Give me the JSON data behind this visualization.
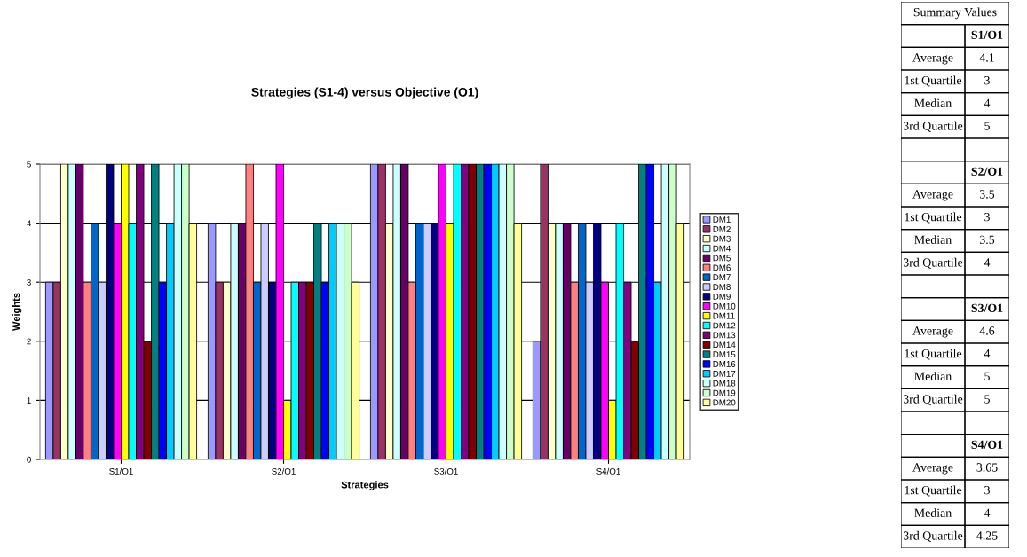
{
  "chart_data": [
    {
      "type": "bar",
      "title": "Strategies (S1-4) versus Objective (O1)",
      "xlabel": "Strategies",
      "ylabel": "Weights",
      "categories": [
        "S1/O1",
        "S2/O1",
        "S3/O1",
        "S4/O1"
      ],
      "series": [
        {
          "name": "DM1",
          "color": "#9999ff",
          "values": [
            3,
            4,
            5,
            2
          ]
        },
        {
          "name": "DM2",
          "color": "#993366",
          "values": [
            3,
            3,
            5,
            5
          ]
        },
        {
          "name": "DM3",
          "color": "#ffffcc",
          "values": [
            5,
            3,
            4,
            4
          ]
        },
        {
          "name": "DM4",
          "color": "#ccffff",
          "values": [
            5,
            4,
            5,
            4
          ]
        },
        {
          "name": "DM5",
          "color": "#660066",
          "values": [
            5,
            4,
            5,
            4
          ]
        },
        {
          "name": "DM6",
          "color": "#ff8080",
          "values": [
            3,
            5,
            3,
            3
          ]
        },
        {
          "name": "DM7",
          "color": "#0066cc",
          "values": [
            4,
            3,
            4,
            4
          ]
        },
        {
          "name": "DM8",
          "color": "#ccccff",
          "values": [
            3,
            4,
            4,
            3
          ]
        },
        {
          "name": "DM9",
          "color": "#000080",
          "values": [
            5,
            3,
            4,
            4
          ]
        },
        {
          "name": "DM10",
          "color": "#ff00ff",
          "values": [
            4,
            5,
            5,
            3
          ]
        },
        {
          "name": "DM11",
          "color": "#ffff00",
          "values": [
            5,
            1,
            4,
            1
          ]
        },
        {
          "name": "DM12",
          "color": "#00ffff",
          "values": [
            4,
            3,
            5,
            4
          ]
        },
        {
          "name": "DM13",
          "color": "#800080",
          "values": [
            5,
            3,
            5,
            3
          ]
        },
        {
          "name": "DM14",
          "color": "#800000",
          "values": [
            2,
            3,
            5,
            2
          ]
        },
        {
          "name": "DM15",
          "color": "#008080",
          "values": [
            5,
            4,
            5,
            5
          ]
        },
        {
          "name": "DM16",
          "color": "#0000ff",
          "values": [
            3,
            3,
            5,
            5
          ]
        },
        {
          "name": "DM17",
          "color": "#00ccff",
          "values": [
            4,
            4,
            5,
            3
          ]
        },
        {
          "name": "DM18",
          "color": "#ccffff",
          "values": [
            5,
            4,
            5,
            5
          ]
        },
        {
          "name": "DM19",
          "color": "#ccffcc",
          "values": [
            5,
            4,
            5,
            5
          ]
        },
        {
          "name": "DM20",
          "color": "#ffff99",
          "values": [
            4,
            3,
            4,
            4
          ]
        }
      ],
      "ylim": [
        0,
        5
      ],
      "yticks": [
        0,
        1,
        2,
        3,
        4,
        5
      ],
      "grid": "y",
      "legend": "right"
    },
    {
      "type": "other",
      "title": "Summary Values",
      "categories": [
        "S1/O1",
        "S2/O1",
        "S3/O1",
        "S4/O1"
      ],
      "y_categories": [
        "Average",
        "1st Quartile",
        "Median",
        "3rd Quartile"
      ],
      "cell_labels": [
        [
          "4.1",
          "3",
          "4",
          "5"
        ],
        [
          "3.5",
          "3",
          "3.5",
          "4"
        ],
        [
          "4.6",
          "4",
          "5",
          "5"
        ],
        [
          "3.65",
          "3",
          "4",
          "4.25"
        ]
      ]
    }
  ]
}
